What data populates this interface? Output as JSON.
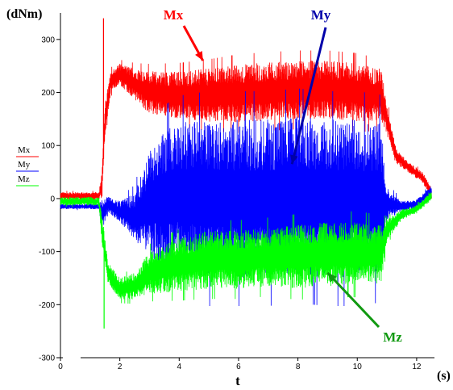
{
  "chart_data": {
    "type": "line",
    "ylabel": "(dNm)",
    "xlabel": "t",
    "xunit": "(s)",
    "xlim": [
      0,
      12.6
    ],
    "ylim": [
      -300,
      350
    ],
    "xticks": [
      0,
      2,
      4,
      6,
      8,
      10,
      12
    ],
    "yticks": [
      -300,
      -200,
      -100,
      0,
      100,
      200,
      300
    ],
    "grid": false,
    "legend_position": "left",
    "series": [
      {
        "name": "Mx",
        "color": "#ff0000",
        "x": [
          0,
          1.3,
          1.4,
          1.5,
          1.7,
          2.0,
          2.5,
          3.0,
          4.0,
          5.0,
          6.0,
          7.0,
          8.0,
          9.0,
          10.0,
          10.8,
          11.0,
          11.3,
          11.7,
          12.2,
          12.5
        ],
        "mean": [
          5,
          5,
          30,
          150,
          220,
          235,
          215,
          200,
          195,
          195,
          198,
          202,
          205,
          205,
          200,
          195,
          150,
          80,
          60,
          40,
          10
        ],
        "amplitude": [
          7,
          7,
          30,
          30,
          20,
          20,
          30,
          40,
          45,
          50,
          55,
          55,
          55,
          55,
          55,
          50,
          30,
          15,
          10,
          10,
          10
        ],
        "spike": {
          "x": 1.45,
          "value": 340
        }
      },
      {
        "name": "My",
        "color": "#0000ff",
        "x": [
          0,
          1.3,
          1.4,
          1.6,
          2.0,
          2.5,
          3.0,
          3.5,
          4.0,
          5.0,
          6.0,
          7.0,
          8.0,
          9.0,
          10.0,
          10.8,
          11.0,
          11.5,
          12.0,
          12.5
        ],
        "mean": [
          -15,
          -15,
          -30,
          -10,
          -25,
          -35,
          -10,
          0,
          5,
          0,
          0,
          0,
          5,
          0,
          0,
          0,
          -10,
          -15,
          -10,
          15
        ],
        "amplitude": [
          5,
          5,
          30,
          15,
          20,
          45,
          100,
          130,
          140,
          150,
          150,
          150,
          150,
          150,
          150,
          145,
          30,
          10,
          8,
          10
        ]
      },
      {
        "name": "Mz",
        "color": "#00ff00",
        "x": [
          0,
          1.3,
          1.4,
          1.6,
          2.0,
          2.5,
          3.0,
          4.0,
          5.0,
          6.0,
          7.0,
          8.0,
          9.0,
          10.0,
          10.8,
          11.0,
          11.5,
          12.0,
          12.5
        ],
        "mean": [
          -5,
          -5,
          -60,
          -140,
          -170,
          -165,
          -140,
          -125,
          -115,
          -115,
          -110,
          -110,
          -105,
          -105,
          -105,
          -60,
          -30,
          -20,
          5
        ],
        "amplitude": [
          8,
          8,
          30,
          20,
          20,
          25,
          40,
          50,
          55,
          55,
          55,
          60,
          60,
          60,
          55,
          20,
          10,
          8,
          8
        ],
        "spike": {
          "x": 1.47,
          "value": -245
        }
      }
    ],
    "annotations": [
      {
        "text": "Mx",
        "color": "#ff0000",
        "points_to": {
          "x": 4.8,
          "y": 260
        }
      },
      {
        "text": "My",
        "color": "#0000aa",
        "points_to": {
          "x": 7.8,
          "y": 65
        }
      },
      {
        "text": "Mz",
        "color": "#119911",
        "points_to": {
          "x": 9.0,
          "y": -140
        }
      }
    ]
  }
}
